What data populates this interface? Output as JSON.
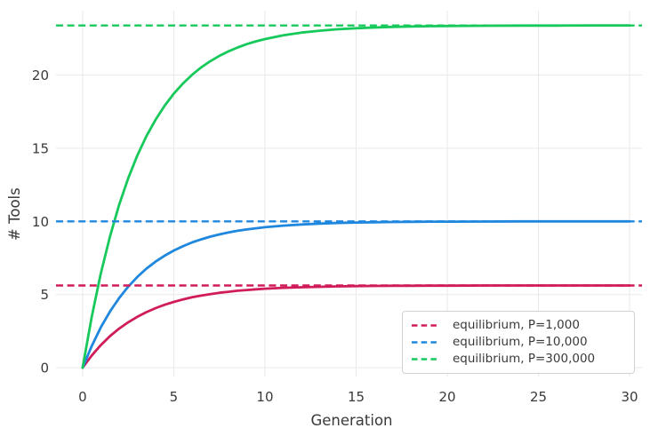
{
  "chart_data": {
    "type": "line",
    "title": "",
    "xlabel": "Generation",
    "ylabel": "# Tools",
    "x_ticks": [
      0,
      5,
      10,
      15,
      20,
      25,
      30
    ],
    "y_ticks": [
      0,
      5,
      10,
      15,
      20
    ],
    "xlim": [
      -1.46,
      30.68
    ],
    "ylim": [
      -0.6,
      24.4
    ],
    "grid": true,
    "legend_position": "lower right",
    "x": [
      0,
      0.5,
      1,
      1.5,
      2,
      2.5,
      3,
      3.5,
      4,
      4.5,
      5,
      5.5,
      6,
      6.5,
      7,
      7.5,
      8,
      8.5,
      9,
      9.5,
      10,
      11,
      12,
      13,
      14,
      15,
      16,
      17,
      18,
      19,
      20,
      22,
      24,
      26,
      28,
      30
    ],
    "series": [
      {
        "name": "P=1,000",
        "color": "#d01c5a",
        "values": [
          0.0,
          0.84,
          1.55,
          2.16,
          2.67,
          3.11,
          3.48,
          3.8,
          4.07,
          4.3,
          4.5,
          4.67,
          4.81,
          4.93,
          5.03,
          5.12,
          5.19,
          5.26,
          5.31,
          5.36,
          5.4,
          5.46,
          5.5,
          5.53,
          5.56,
          5.58,
          5.59,
          5.6,
          5.6,
          5.61,
          5.61,
          5.62,
          5.62,
          5.62,
          5.62,
          5.62
        ]
      },
      {
        "name": "P=10,000",
        "color": "#1f87de",
        "values": [
          0.0,
          1.49,
          2.76,
          3.84,
          4.75,
          5.54,
          6.2,
          6.77,
          7.25,
          7.66,
          8.01,
          8.3,
          8.56,
          8.77,
          8.96,
          9.11,
          9.24,
          9.36,
          9.45,
          9.53,
          9.6,
          9.71,
          9.79,
          9.85,
          9.89,
          9.92,
          9.94,
          9.96,
          9.97,
          9.98,
          9.98,
          9.99,
          10.0,
          10.0,
          10.0,
          10.0
        ]
      },
      {
        "name": "P=300,000",
        "color": "#17c95b",
        "values": [
          0.0,
          3.49,
          6.45,
          8.97,
          11.12,
          12.95,
          14.5,
          15.83,
          16.95,
          17.91,
          18.73,
          19.42,
          20.02,
          20.52,
          20.95,
          21.31,
          21.62,
          21.88,
          22.11,
          22.3,
          22.46,
          22.72,
          22.9,
          23.03,
          23.13,
          23.2,
          23.25,
          23.29,
          23.32,
          23.34,
          23.35,
          23.37,
          23.38,
          23.38,
          23.39,
          23.39
        ]
      }
    ],
    "equilibrium_lines": [
      {
        "label": "equilibrium, P=1,000",
        "value": 5.62,
        "color": "#d01c5a"
      },
      {
        "label": "equilibrium, P=10,000",
        "value": 10.0,
        "color": "#1f87de"
      },
      {
        "label": "equilibrium, P=300,000",
        "value": 23.39,
        "color": "#17c95b"
      }
    ],
    "grid_color": "#e9e9e9"
  }
}
